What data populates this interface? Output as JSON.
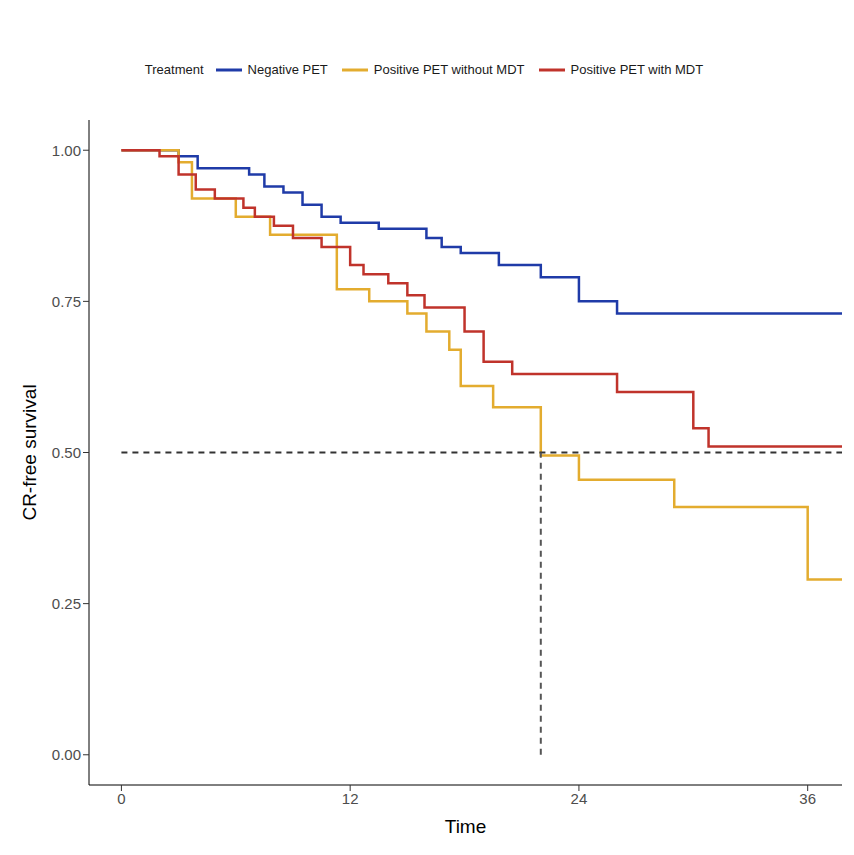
{
  "chart_data": {
    "type": "line",
    "legend_title": "Treatment",
    "legend": "top",
    "x_label": "Time",
    "y_label": "CR-free survival",
    "xlim": [
      -1.7,
      37.8
    ],
    "xticks": [
      0,
      12,
      24,
      36
    ],
    "ylim": [
      -0.05,
      1.05
    ],
    "yticks": [
      {
        "value": 0,
        "label": "0.00"
      },
      {
        "value": 0.25,
        "label": "0.25"
      },
      {
        "value": 0.5,
        "label": "0.50"
      },
      {
        "value": 0.75,
        "label": "0.75"
      },
      {
        "value": 1,
        "label": "1.00"
      }
    ],
    "grid": false,
    "line_style": "step",
    "median_line": {
      "y": 0.5,
      "x": 22
    },
    "series": [
      {
        "name": "Negative PET",
        "color": "#1f3ba8",
        "x": [
          0,
          3,
          4,
          6.7,
          7.5,
          8.5,
          9.5,
          10.5,
          11.5,
          13.5,
          16,
          16.8,
          17.8,
          19.8,
          22,
          24,
          26,
          37.8
        ],
        "values": [
          1,
          0.99,
          0.97,
          0.96,
          0.94,
          0.93,
          0.91,
          0.89,
          0.88,
          0.87,
          0.855,
          0.84,
          0.83,
          0.81,
          0.79,
          0.75,
          0.73,
          0.73
        ]
      },
      {
        "name": "Positive PET without MDT",
        "color": "#e3ac2f",
        "x": [
          0,
          3,
          3.7,
          6,
          7.8,
          11.3,
          13,
          15,
          16,
          17.2,
          17.8,
          19.5,
          22,
          24,
          29,
          36,
          37.8
        ],
        "values": [
          1,
          0.98,
          0.92,
          0.89,
          0.86,
          0.77,
          0.75,
          0.73,
          0.7,
          0.67,
          0.61,
          0.575,
          0.495,
          0.455,
          0.41,
          0.29,
          0.29
        ]
      },
      {
        "name": "Positive PET with MDT",
        "color": "#c0332b",
        "x": [
          0,
          2,
          3,
          3.9,
          4.9,
          6.4,
          7,
          8,
          9,
          10.5,
          12,
          12.7,
          14,
          15,
          15.9,
          18,
          19,
          20.5,
          26,
          30,
          30.8,
          37.8
        ],
        "values": [
          1,
          0.99,
          0.96,
          0.935,
          0.92,
          0.905,
          0.89,
          0.875,
          0.855,
          0.84,
          0.81,
          0.795,
          0.78,
          0.76,
          0.74,
          0.7,
          0.65,
          0.63,
          0.6,
          0.54,
          0.51,
          0.51
        ]
      }
    ]
  }
}
